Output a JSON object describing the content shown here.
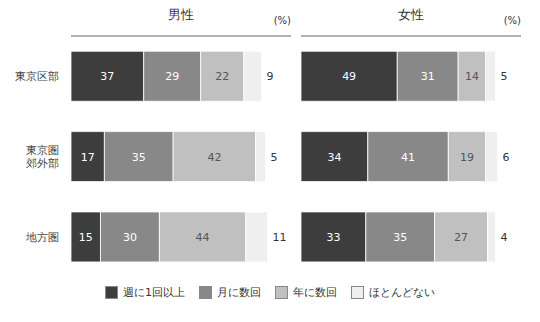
{
  "chart_data": [
    {
      "type": "bar",
      "orientation": "horizontal",
      "stacked": true,
      "title": "男性",
      "annotations": [
        "(%)"
      ],
      "categories": [
        "東京区部",
        "東京圏\n郊外部",
        "地方圏"
      ],
      "series": [
        {
          "name": "週に1回以上",
          "color": "#3d3d3d",
          "values": [
            37,
            17,
            15
          ]
        },
        {
          "name": "月に数回",
          "color": "#888888",
          "values": [
            29,
            35,
            30
          ]
        },
        {
          "name": "年に数回",
          "color": "#c0c0c0",
          "values": [
            22,
            42,
            44
          ]
        },
        {
          "name": "ほとんどない",
          "color": "#efefef",
          "values": [
            9,
            5,
            11
          ]
        }
      ],
      "xlim": [
        0,
        112
      ],
      "xticks": [
        0,
        25,
        50,
        75,
        100
      ],
      "tick_labels": "y",
      "data_labels": true,
      "grid": false,
      "legend": "bottom"
    },
    {
      "type": "bar",
      "orientation": "horizontal",
      "stacked": true,
      "title": "女性",
      "annotations": [
        "(%)"
      ],
      "categories": [
        "東京区部",
        "東京圏\n郊外部",
        "地方圏"
      ],
      "series": [
        {
          "name": "週に1回以上",
          "color": "#3d3d3d",
          "values": [
            49,
            34,
            33
          ]
        },
        {
          "name": "月に数回",
          "color": "#888888",
          "values": [
            31,
            41,
            35
          ]
        },
        {
          "name": "年に数回",
          "color": "#c0c0c0",
          "values": [
            14,
            19,
            27
          ]
        },
        {
          "name": "ほとんどない",
          "color": "#efefef",
          "values": [
            5,
            6,
            4
          ]
        }
      ],
      "xlim": [
        0,
        112
      ],
      "xticks": [
        0,
        25,
        50,
        75,
        100
      ],
      "tick_labels": false,
      "data_labels": true,
      "grid": false
    }
  ]
}
